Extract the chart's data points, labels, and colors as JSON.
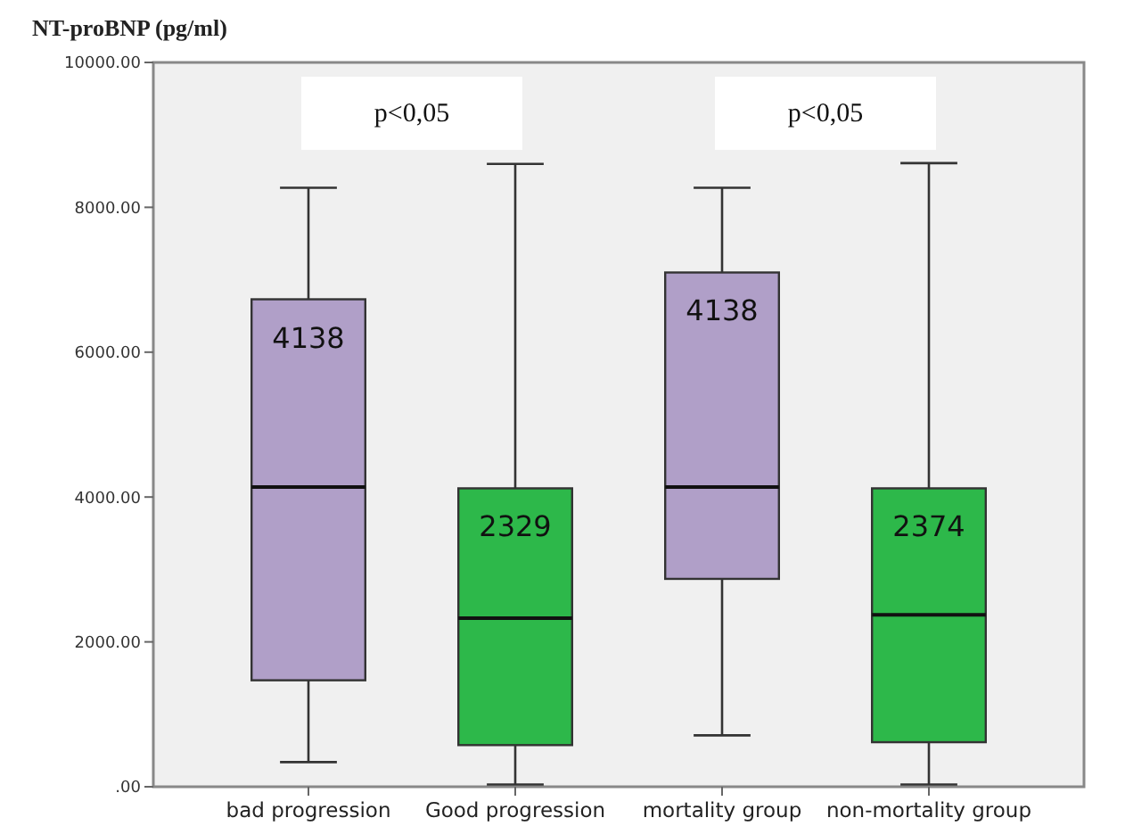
{
  "chart_data": {
    "type": "box",
    "ylabel": "NT-proBNP (pg/ml)",
    "categories": [
      "bad progression",
      "Good progression",
      "mortality group",
      "non-mortality group"
    ],
    "colors": [
      "#b09fc8",
      "#2db84a",
      "#b09fc8",
      "#2db84a"
    ],
    "boxes": [
      {
        "low": 340,
        "q1": 1470,
        "median": 4138,
        "q3": 6730,
        "high": 8270
      },
      {
        "low": 30,
        "q1": 575,
        "median": 2329,
        "q3": 4120,
        "high": 8600
      },
      {
        "low": 710,
        "q1": 2870,
        "median": 4138,
        "q3": 7100,
        "high": 8270
      },
      {
        "low": 30,
        "q1": 615,
        "median": 2374,
        "q3": 4120,
        "high": 8610
      }
    ],
    "ylim": [
      0,
      10000
    ],
    "yticks": [
      {
        "value": 0,
        "label": ".00"
      },
      {
        "value": 2000,
        "label": "2000.00"
      },
      {
        "value": 4000,
        "label": "4000.00"
      },
      {
        "value": 6000,
        "label": "6000.00"
      },
      {
        "value": 8000,
        "label": "8000.00"
      },
      {
        "value": 10000,
        "label": "10000.00"
      }
    ],
    "annotations": [
      "p<0,05",
      "p<0,05",
      "4138",
      "2329",
      "4138",
      "2374"
    ],
    "grid": false
  }
}
